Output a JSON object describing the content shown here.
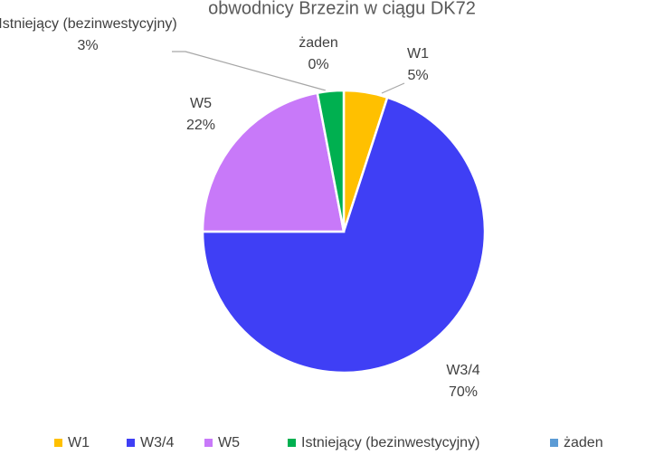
{
  "chart_data": {
    "type": "pie",
    "title": "obwodnicy Brzezin w ciągu DK72",
    "categories": [
      "W1",
      "W3/4",
      "W5",
      "Istniejący (bezinwestycyjny)",
      "żaden"
    ],
    "values": [
      5,
      70,
      22,
      3,
      0
    ],
    "value_labels": [
      "5%",
      "70%",
      "22%",
      "3%",
      "0%"
    ],
    "colors": [
      "#ffc000",
      "#3f3ff5",
      "#c879f9",
      "#00b050",
      "#5b9bd5"
    ],
    "legend": "bottom"
  }
}
